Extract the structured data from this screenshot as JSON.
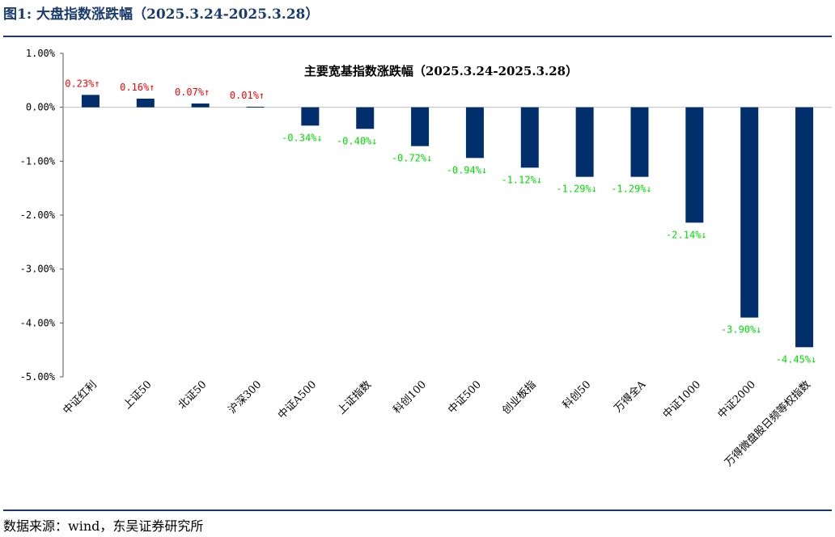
{
  "figure": {
    "title": "图1:  大盘指数涨跌幅（2025.3.24-2025.3.28）",
    "source": "数据来源：wind，东吴证券研究所"
  },
  "colors": {
    "bar": "#002f6c",
    "up": "#ff0000",
    "down": "#00dd00",
    "rule": "#1a3b6e"
  },
  "chart_data": {
    "type": "bar",
    "title": "主要宽基指数涨跌幅（2025.3.24-2025.3.28）",
    "categories": [
      "中证红利",
      "上证50",
      "北证50",
      "沪深300",
      "中证A500",
      "上证指数",
      "科创100",
      "中证500",
      "创业板指",
      "科创50",
      "万得全A",
      "中证1000",
      "中证2000",
      "万得微盘股日频等权指数"
    ],
    "values": [
      0.23,
      0.16,
      0.07,
      0.01,
      -0.34,
      -0.4,
      -0.72,
      -0.94,
      -1.12,
      -1.29,
      -1.29,
      -2.14,
      -3.9,
      -4.45
    ],
    "data_labels": [
      "0.23%↑",
      "0.16%↑",
      "0.07%↑",
      "0.01%↑",
      "-0.34%↓",
      "-0.40%↓",
      "-0.72%↓",
      "-0.94%↓",
      "-1.12%↓",
      "-1.29%↓",
      "-1.29%↓",
      "-2.14%↓",
      "-3.90%↓",
      "-4.45%↓"
    ],
    "ylim": [
      -5,
      1
    ],
    "y_ticks": [
      1,
      0,
      -1,
      -2,
      -3,
      -4,
      -5
    ],
    "y_tick_labels": [
      "1.00%",
      "0.00%",
      "-1.00%",
      "-2.00%",
      "-3.00%",
      "-4.00%",
      "-5.00%"
    ],
    "xlabel": "",
    "ylabel": "",
    "grid": false,
    "legend": "none"
  }
}
